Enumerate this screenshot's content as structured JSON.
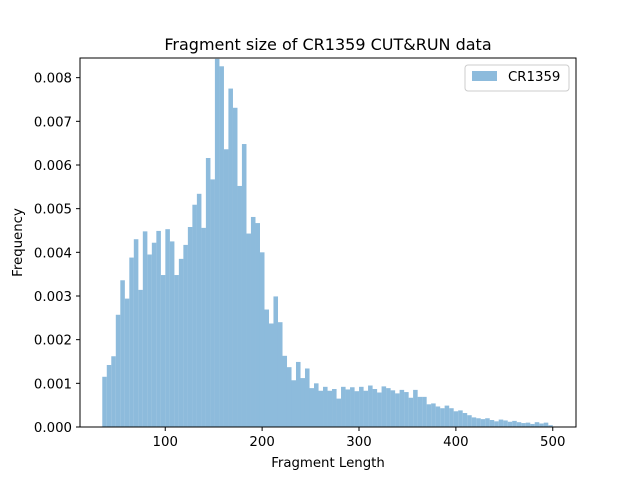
{
  "chart_data": {
    "type": "histogram",
    "title": "Fragment size of CR1359 CUT&RUN data",
    "xlabel": "Fragment Length",
    "ylabel": "Frequency",
    "xlim": [
      12,
      524
    ],
    "ylim": [
      0,
      0.00845
    ],
    "x_ticks": [
      100,
      200,
      300,
      400,
      500
    ],
    "x_tick_labels": [
      "100",
      "200",
      "300",
      "400",
      "500"
    ],
    "y_ticks": [
      0,
      0.001,
      0.002,
      0.003,
      0.004,
      0.005,
      0.006,
      0.007,
      0.008
    ],
    "y_tick_labels": [
      "0.000",
      "0.001",
      "0.002",
      "0.003",
      "0.004",
      "0.005",
      "0.006",
      "0.007",
      "0.008"
    ],
    "legend": {
      "position": "upper right",
      "entries": [
        "CR1359"
      ]
    },
    "grid": false,
    "bar_color": "#8dbbdc",
    "bins": {
      "start": 35,
      "end": 500,
      "count": 100
    },
    "series": [
      {
        "name": "CR1359",
        "values": [
          0.00115,
          0.00142,
          0.00162,
          0.00257,
          0.00336,
          0.00294,
          0.00388,
          0.0043,
          0.00314,
          0.00448,
          0.00395,
          0.00422,
          0.00449,
          0.00348,
          0.00453,
          0.00425,
          0.00348,
          0.00385,
          0.00417,
          0.00458,
          0.00509,
          0.00534,
          0.00456,
          0.00616,
          0.00567,
          0.00843,
          0.00826,
          0.00636,
          0.00775,
          0.00731,
          0.00552,
          0.00648,
          0.00443,
          0.00481,
          0.00467,
          0.004,
          0.00269,
          0.00237,
          0.00299,
          0.0024,
          0.00163,
          0.00137,
          0.00107,
          0.00149,
          0.00112,
          0.00134,
          0.00089,
          0.001,
          0.00083,
          0.00092,
          0.00083,
          0.00087,
          0.00065,
          0.00092,
          0.00086,
          0.00091,
          0.00082,
          0.00092,
          0.00083,
          0.00095,
          0.00087,
          0.00079,
          0.00093,
          0.00089,
          0.00084,
          0.00077,
          0.00085,
          0.0008,
          0.00067,
          0.00085,
          0.00069,
          0.00069,
          0.00052,
          0.00054,
          0.00047,
          0.00043,
          0.00049,
          0.00043,
          0.00036,
          0.00038,
          0.00032,
          0.00027,
          0.00022,
          0.0002,
          0.00018,
          0.0002,
          0.00016,
          0.00013,
          0.00017,
          0.00015,
          0.00012,
          0.00014,
          0.00011,
          9e-05,
          0.0001,
          7e-05,
          0.00011,
          8e-05,
          0.0001,
          4e-05
        ]
      }
    ]
  }
}
